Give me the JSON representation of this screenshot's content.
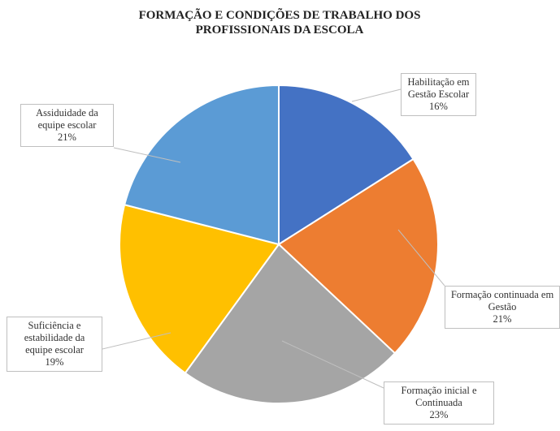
{
  "chart_data": {
    "type": "pie",
    "title": "FORMAÇÃO E CONDIÇÕES DE TRABALHO DOS PROFISSIONAIS DA ESCOLA",
    "categories": [
      "Habilitação em Gestão Escolar",
      "Formação continuada em Gestão",
      "Formação inicial e Continuada",
      "Suficiência e estabilidade da equipe escolar",
      "Assiduidade da equipe escolar"
    ],
    "values": [
      16,
      21,
      23,
      19,
      21
    ],
    "value_labels": [
      "16%",
      "21%",
      "23%",
      "19%",
      "21%"
    ],
    "colors": [
      "#4472c4",
      "#ed7d31",
      "#a5a5a5",
      "#ffc000",
      "#5b9bd5"
    ]
  }
}
